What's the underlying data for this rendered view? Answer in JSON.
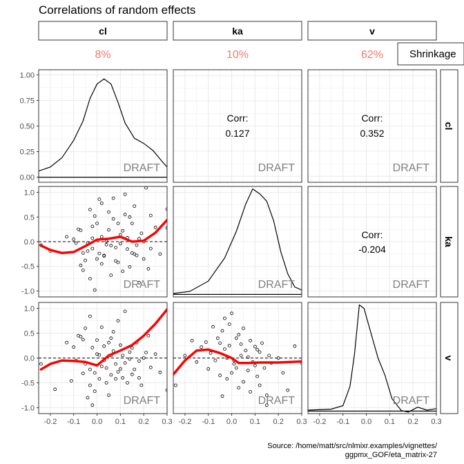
{
  "chart_data": {
    "type": "scatter",
    "title": "Correlations of random effects",
    "variables": [
      "cl",
      "ka",
      "v"
    ],
    "shrinkage": {
      "label": "Shrinkage",
      "values": [
        "8%",
        "10%",
        "62%"
      ]
    },
    "watermark": "DRAFT",
    "corr_label": "Corr:",
    "correlations": {
      "cl_ka": "0.127",
      "cl_v": "0.352",
      "ka_v": "-0.204"
    },
    "x_axis": {
      "range": [
        -0.25,
        0.3
      ],
      "ticks": [
        -0.2,
        -0.1,
        0.0,
        0.1,
        0.2,
        0.3
      ],
      "tick_labels": [
        "-0.2",
        "-0.1",
        "0.0",
        "0.1",
        "0.2",
        "0.3"
      ]
    },
    "y_axis_cl_density": {
      "ticks": [
        0,
        0.25,
        0.5,
        0.75,
        1.0
      ],
      "tick_labels": [
        "0.00",
        "0.25",
        "0.50",
        "0.75",
        "1.00"
      ]
    },
    "y_axis_eta": {
      "range": [
        -1.12,
        1.12
      ],
      "ticks": [
        -1,
        -0.5,
        0,
        0.5,
        1
      ],
      "tick_labels": [
        "-1.0",
        "-0.5",
        "0.0",
        "0.5",
        "1.0"
      ]
    },
    "density_cl": [
      [
        -0.25,
        0.06
      ],
      [
        -0.2,
        0.1
      ],
      [
        -0.15,
        0.19
      ],
      [
        -0.1,
        0.36
      ],
      [
        -0.06,
        0.55
      ],
      [
        -0.03,
        0.77
      ],
      [
        0,
        0.91
      ],
      [
        0.03,
        0.96
      ],
      [
        0.06,
        0.91
      ],
      [
        0.09,
        0.73
      ],
      [
        0.12,
        0.53
      ],
      [
        0.16,
        0.38
      ],
      [
        0.2,
        0.33
      ],
      [
        0.24,
        0.26
      ],
      [
        0.28,
        0.15
      ],
      [
        0.3,
        0.1
      ]
    ],
    "density_ka": [
      [
        -0.25,
        -1.05
      ],
      [
        -0.18,
        -1.01
      ],
      [
        -0.1,
        -0.8
      ],
      [
        -0.03,
        -0.33
      ],
      [
        0.02,
        0.21
      ],
      [
        0.06,
        0.76
      ],
      [
        0.09,
        1.07
      ],
      [
        0.12,
        0.97
      ],
      [
        0.15,
        0.82
      ],
      [
        0.18,
        0.42
      ],
      [
        0.21,
        -0.2
      ],
      [
        0.24,
        -0.65
      ],
      [
        0.27,
        -0.92
      ],
      [
        0.3,
        -0.98
      ]
    ],
    "density_v": [
      [
        -0.25,
        -1.05
      ],
      [
        -0.15,
        -1.03
      ],
      [
        -0.1,
        -0.96
      ],
      [
        -0.07,
        -0.57
      ],
      [
        -0.05,
        0.1
      ],
      [
        -0.03,
        1.07
      ],
      [
        -0.01,
        1.0
      ],
      [
        0.02,
        0.5
      ],
      [
        0.05,
        0.0
      ],
      [
        0.08,
        -0.35
      ],
      [
        0.11,
        -0.82
      ],
      [
        0.15,
        -1.06
      ],
      [
        0.18,
        -1.09
      ],
      [
        0.22,
        -0.99
      ],
      [
        0.26,
        -1.05
      ],
      [
        0.3,
        -1.02
      ]
    ],
    "smooth_ka_vs_cl": [
      [
        -0.24,
        -0.08
      ],
      [
        -0.2,
        -0.17
      ],
      [
        -0.15,
        -0.23
      ],
      [
        -0.1,
        -0.21
      ],
      [
        -0.05,
        -0.09
      ],
      [
        0,
        0.04
      ],
      [
        0.05,
        0.06
      ],
      [
        0.1,
        0.1
      ],
      [
        0.15,
        0.0
      ],
      [
        0.2,
        0.02
      ],
      [
        0.25,
        0.18
      ],
      [
        0.3,
        0.44
      ]
    ],
    "smooth_v_vs_cl": [
      [
        -0.24,
        -0.23
      ],
      [
        -0.2,
        -0.12
      ],
      [
        -0.15,
        -0.05
      ],
      [
        -0.1,
        -0.06
      ],
      [
        -0.05,
        -0.08
      ],
      [
        0,
        -0.15
      ],
      [
        0.05,
        0.05
      ],
      [
        0.1,
        0.15
      ],
      [
        0.15,
        0.26
      ],
      [
        0.2,
        0.45
      ],
      [
        0.25,
        0.69
      ],
      [
        0.3,
        0.98
      ]
    ],
    "smooth_v_vs_ka": [
      [
        -0.25,
        -0.33
      ],
      [
        -0.2,
        -0.05
      ],
      [
        -0.15,
        0.15
      ],
      [
        -0.1,
        0.17
      ],
      [
        -0.05,
        0.1
      ],
      [
        0,
        0.0
      ],
      [
        0.03,
        -0.1
      ],
      [
        0.07,
        -0.1
      ],
      [
        0.12,
        -0.09
      ],
      [
        0.2,
        -0.09
      ],
      [
        0.3,
        -0.07
      ]
    ],
    "points_ka_vs_cl": [
      [
        -0.24,
        -0.07
      ],
      [
        -0.2,
        -0.19
      ],
      [
        -0.13,
        0.1
      ],
      [
        -0.09,
        -0.03
      ],
      [
        -0.08,
        0.25
      ],
      [
        -0.07,
        -0.48
      ],
      [
        -0.07,
        0.23
      ],
      [
        -0.06,
        -0.58
      ],
      [
        -0.05,
        -0.38
      ],
      [
        -0.04,
        -0.19
      ],
      [
        -0.03,
        0.65
      ],
      [
        -0.03,
        -0.75
      ],
      [
        -0.02,
        0.07
      ],
      [
        -0.02,
        -0.14
      ],
      [
        -0.01,
        -0.98
      ],
      [
        -0.01,
        0.52
      ],
      [
        0.0,
        0.37
      ],
      [
        0.01,
        -0.24
      ],
      [
        0.01,
        0.86
      ],
      [
        0.02,
        0.1
      ],
      [
        0.02,
        0.78
      ],
      [
        0.03,
        -0.28
      ],
      [
        0.03,
        -0.29
      ],
      [
        0.04,
        -0.06
      ],
      [
        0.05,
        0.6
      ],
      [
        0.06,
        -0.68
      ],
      [
        0.07,
        0.46
      ],
      [
        0.07,
        0.88
      ],
      [
        0.08,
        -0.39
      ],
      [
        0.08,
        -0.12
      ],
      [
        0.09,
        -0.42
      ],
      [
        0.09,
        0.37
      ],
      [
        0.1,
        -0.04
      ],
      [
        0.11,
        -0.6
      ],
      [
        0.12,
        0.55
      ],
      [
        0.12,
        0.96
      ],
      [
        0.13,
        0.08
      ],
      [
        0.13,
        -0.15
      ],
      [
        0.14,
        0.5
      ],
      [
        0.15,
        -0.23
      ],
      [
        0.15,
        0.37
      ],
      [
        0.16,
        -0.25
      ],
      [
        0.17,
        -0.28
      ],
      [
        0.18,
        0.06
      ],
      [
        0.18,
        -0.83
      ],
      [
        0.19,
        0.17
      ],
      [
        0.2,
        -0.35
      ],
      [
        0.2,
        0.0
      ],
      [
        0.21,
        1.09
      ],
      [
        0.22,
        -0.55
      ],
      [
        0.23,
        0.53
      ],
      [
        0.23,
        -0.14
      ],
      [
        0.25,
        0.29
      ],
      [
        0.27,
        -0.25
      ],
      [
        0.3,
        0.66
      ],
      [
        0.3,
        0.28
      ],
      [
        -0.04,
        -0.03
      ],
      [
        0.0,
        -0.35
      ],
      [
        0.05,
        0.24
      ],
      [
        0.1,
        0.14
      ],
      [
        0.14,
        -0.51
      ],
      [
        -0.1,
        0.05
      ],
      [
        -0.02,
        0.31
      ],
      [
        0.06,
        -0.08
      ],
      [
        0.11,
        0.22
      ],
      [
        0.17,
        -0.07
      ],
      [
        0.04,
        0.01
      ],
      [
        0.02,
        -0.45
      ],
      [
        -0.06,
        -0.23
      ],
      [
        0.16,
        0.72
      ]
    ],
    "points_v_vs_cl": [
      [
        -0.24,
        -0.12
      ],
      [
        -0.18,
        -0.63
      ],
      [
        -0.13,
        0.31
      ],
      [
        -0.1,
        0.22
      ],
      [
        -0.09,
        -0.05
      ],
      [
        -0.07,
        0.43
      ],
      [
        -0.06,
        -0.31
      ],
      [
        -0.05,
        -0.12
      ],
      [
        -0.04,
        -0.8
      ],
      [
        -0.03,
        0.84
      ],
      [
        -0.03,
        -0.23
      ],
      [
        -0.02,
        0.21
      ],
      [
        -0.01,
        -0.67
      ],
      [
        0.0,
        0.08
      ],
      [
        0.0,
        0.36
      ],
      [
        0.01,
        -0.42
      ],
      [
        0.02,
        -0.17
      ],
      [
        0.02,
        0.62
      ],
      [
        0.03,
        -0.05
      ],
      [
        0.04,
        -0.5
      ],
      [
        0.05,
        0.31
      ],
      [
        0.06,
        -0.34
      ],
      [
        0.06,
        0.05
      ],
      [
        0.07,
        0.53
      ],
      [
        0.08,
        -0.12
      ],
      [
        0.08,
        -0.42
      ],
      [
        0.09,
        0.75
      ],
      [
        0.1,
        -0.22
      ],
      [
        0.1,
        0.26
      ],
      [
        0.11,
        0.05
      ],
      [
        0.12,
        0.94
      ],
      [
        0.13,
        -0.5
      ],
      [
        0.14,
        0.12
      ],
      [
        0.15,
        0.2
      ],
      [
        0.16,
        -0.23
      ],
      [
        0.17,
        0.31
      ],
      [
        0.18,
        -0.4
      ],
      [
        0.18,
        -0.06
      ],
      [
        0.2,
        0.0
      ],
      [
        0.21,
        0.11
      ],
      [
        0.22,
        0.45
      ],
      [
        0.23,
        -0.19
      ],
      [
        0.25,
        0.08
      ],
      [
        0.27,
        -0.29
      ],
      [
        0.3,
        -0.65
      ],
      [
        -0.11,
        -0.46
      ],
      [
        -0.06,
        0.37
      ],
      [
        -0.02,
        -0.95
      ],
      [
        0.03,
        0.24
      ],
      [
        0.05,
        -0.75
      ],
      [
        0.07,
        0.14
      ],
      [
        0.12,
        -0.1
      ],
      [
        -0.08,
        0.45
      ],
      [
        -0.03,
        -0.55
      ],
      [
        0.01,
        0.06
      ],
      [
        0.09,
        -0.28
      ],
      [
        0.15,
        -0.33
      ],
      [
        -0.05,
        0.6
      ],
      [
        0.04,
        -0.2
      ],
      [
        0.19,
        -0.55
      ],
      [
        0.06,
        0.4
      ],
      [
        -0.01,
        -0.3
      ],
      [
        0.11,
        -0.4
      ],
      [
        0.14,
        -0.02
      ]
    ],
    "points_v_vs_ka": [
      [
        -0.24,
        -0.55
      ],
      [
        -0.2,
        0.05
      ],
      [
        -0.17,
        0.35
      ],
      [
        -0.15,
        -0.08
      ],
      [
        -0.13,
        0.22
      ],
      [
        -0.11,
        0.32
      ],
      [
        -0.1,
        -0.22
      ],
      [
        -0.09,
        0.1
      ],
      [
        -0.08,
        0.63
      ],
      [
        -0.07,
        -0.05
      ],
      [
        -0.06,
        0.4
      ],
      [
        -0.05,
        0.3
      ],
      [
        -0.05,
        -0.35
      ],
      [
        -0.04,
        -0.77
      ],
      [
        -0.04,
        0.55
      ],
      [
        -0.03,
        0.18
      ],
      [
        -0.02,
        -0.42
      ],
      [
        -0.02,
        0.0
      ],
      [
        -0.01,
        0.68
      ],
      [
        0.0,
        -0.3
      ],
      [
        0.0,
        0.9
      ],
      [
        0.01,
        -0.12
      ],
      [
        0.02,
        0.4
      ],
      [
        0.02,
        -0.2
      ],
      [
        0.03,
        -0.6
      ],
      [
        0.04,
        0.05
      ],
      [
        0.04,
        0.28
      ],
      [
        0.05,
        -0.48
      ],
      [
        0.06,
        0.15
      ],
      [
        0.07,
        -0.25
      ],
      [
        0.08,
        0.35
      ],
      [
        0.08,
        -0.68
      ],
      [
        0.09,
        -0.08
      ],
      [
        0.1,
        0.23
      ],
      [
        0.11,
        -0.37
      ],
      [
        0.12,
        -0.55
      ],
      [
        0.12,
        0.12
      ],
      [
        0.13,
        0.3
      ],
      [
        0.14,
        -0.2
      ],
      [
        0.15,
        -0.75
      ],
      [
        0.16,
        0.05
      ],
      [
        0.17,
        -0.1
      ],
      [
        0.2,
        0.0
      ],
      [
        0.22,
        -0.3
      ],
      [
        0.24,
        -0.65
      ],
      [
        0.27,
        0.24
      ],
      [
        0.3,
        -0.1
      ],
      [
        0.15,
        -0.95
      ],
      [
        -0.03,
        0.8
      ],
      [
        0.05,
        0.6
      ],
      [
        0.1,
        -0.15
      ],
      [
        0.01,
        -0.05
      ],
      [
        0.03,
        0.47
      ],
      [
        0.07,
        0.02
      ],
      [
        0.11,
        0.17
      ],
      [
        -0.01,
        0.25
      ]
    ]
  },
  "source_caption": {
    "line1": "Source: /home/matt/src/nlmixr.examples/vignettes/",
    "line2": "ggpmx_GOF/eta_matrix-27"
  },
  "colors": {
    "smooth": "#ff0000",
    "shrinkage_text": "#f8766d",
    "strip_fill": "#ffffff",
    "panel_border": "#333333",
    "grid": "#ebebeb",
    "watermark": "#808080"
  }
}
